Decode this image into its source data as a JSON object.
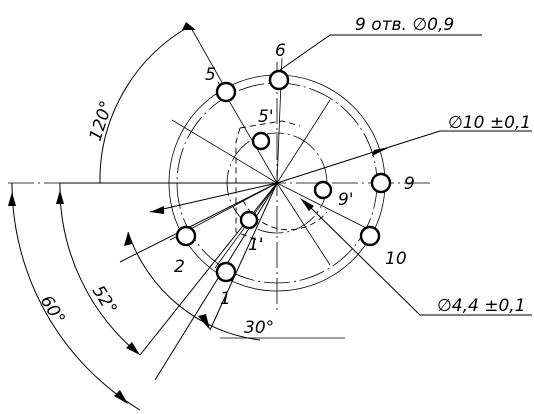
{
  "annotations": {
    "holes_note": "9 отв. ∅0,9",
    "inner_diameter": "∅10 ±0,1",
    "pcd_diameter": "∅4,4 ±0,1",
    "angle_120": "120°",
    "angle_52": "52°",
    "angle_60": "60°",
    "angle_30": "30°"
  },
  "hole_labels": {
    "h5": "5",
    "h6": "6",
    "h5p": "5'",
    "h9p": "9'",
    "h9": "9",
    "h10": "10",
    "h1p": "1'",
    "h2": "2",
    "h1": "1"
  }
}
